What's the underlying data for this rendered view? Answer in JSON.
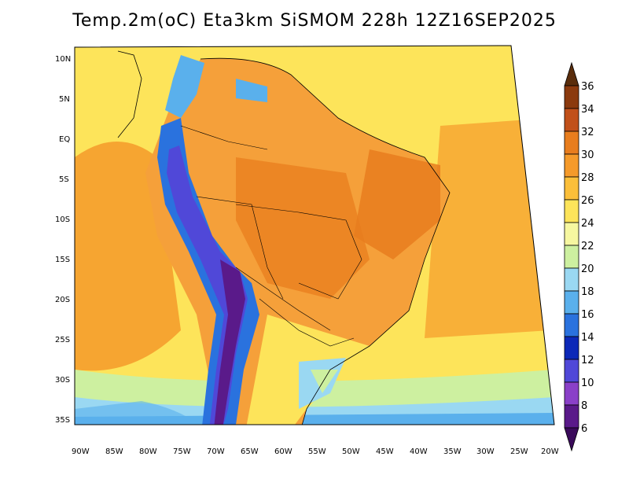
{
  "title": "Temp.2m(oC) Eta3km SiSMOM 228h 12Z16SEP2025",
  "lat_labels": [
    "10N",
    "5N",
    "EQ",
    "5S",
    "10S",
    "15S",
    "20S",
    "25S",
    "30S",
    "35S"
  ],
  "lon_labels": [
    "90W",
    "85W",
    "80W",
    "75W",
    "70W",
    "65W",
    "60W",
    "55W",
    "50W",
    "45W",
    "40W",
    "35W",
    "30W",
    "25W",
    "20W"
  ],
  "colorbar": {
    "labels": [
      "36",
      "34",
      "32",
      "30",
      "28",
      "26",
      "24",
      "22",
      "20",
      "18",
      "16",
      "14",
      "12",
      "10",
      "8",
      "6"
    ],
    "colors": [
      "#5a2d0c",
      "#8b3a0e",
      "#c1501a",
      "#e87d1e",
      "#f59a2a",
      "#fbbf3a",
      "#fde45a",
      "#f6f7a0",
      "#cdf0a0",
      "#9ad8f2",
      "#5ab0ec",
      "#2a72de",
      "#0c28b8",
      "#5048d8",
      "#8a40c8",
      "#5a1a8a",
      "#3a0a5a"
    ]
  }
}
